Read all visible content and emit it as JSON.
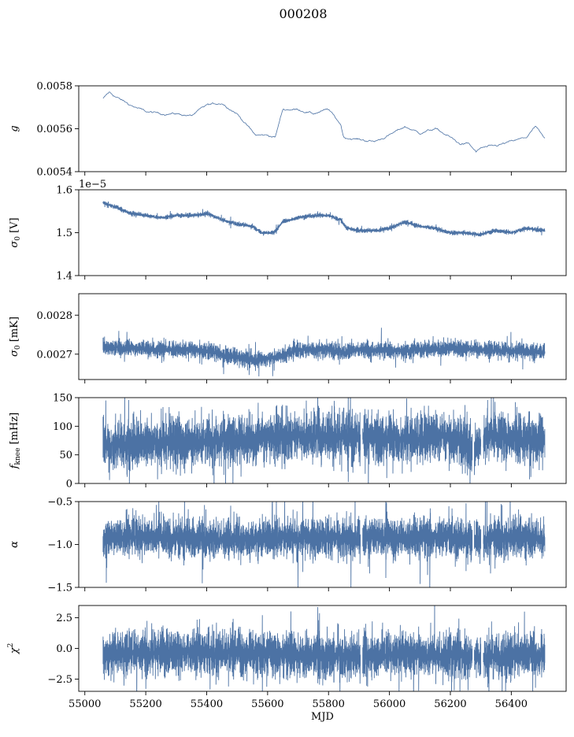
{
  "figure": {
    "title": "000208"
  },
  "colors": {
    "series": "#4c72a4",
    "axis": "#000000",
    "background": "#ffffff"
  },
  "chart_data": [
    {
      "type": "line",
      "panel": "g",
      "ylabel": "g",
      "ylabel_html": "<tspan font-style='italic'>g</tspan>",
      "ylim": [
        0.0054,
        0.0058
      ],
      "yticks": [
        0.0054,
        0.0056,
        0.0058
      ],
      "ytick_labels": [
        "0.0054",
        "0.0056",
        "0.0058"
      ],
      "xlim": [
        54980,
        56580
      ],
      "show_xtick_labels": false,
      "style": "thin",
      "x_range": [
        55060,
        56510
      ],
      "x": [
        55060,
        55080,
        55100,
        55150,
        55200,
        55250,
        55300,
        55350,
        55400,
        55450,
        55500,
        55530,
        55560,
        55600,
        55625,
        55650,
        55700,
        55750,
        55800,
        55840,
        55850,
        55900,
        55950,
        56000,
        56050,
        56100,
        56150,
        56200,
        56230,
        56260,
        56285,
        56300,
        56350,
        56400,
        56450,
        56480,
        56510
      ],
      "y": [
        0.00574,
        0.00577,
        0.00575,
        0.00571,
        0.00568,
        0.00567,
        0.00567,
        0.00566,
        0.00571,
        0.00572,
        0.00567,
        0.00562,
        0.00557,
        0.00557,
        0.00556,
        0.00569,
        0.00569,
        0.00567,
        0.00569,
        0.00562,
        0.00556,
        0.00555,
        0.00554,
        0.00557,
        0.00561,
        0.00558,
        0.0056,
        0.00556,
        0.00553,
        0.00553,
        0.00549,
        0.00551,
        0.00552,
        0.00554,
        0.00556,
        0.00561,
        0.00555
      ],
      "noise": 4e-06
    },
    {
      "type": "line",
      "panel": "sigma0_V",
      "ylabel": "σ0 [V]",
      "ylim": [
        1.4e-05,
        1.6e-05
      ],
      "yticks": [
        1.4e-05,
        1.5e-05,
        1.6e-05
      ],
      "ytick_labels": [
        "1.4",
        "1.5",
        "1.6"
      ],
      "offset_text": "1e−5",
      "xlim": [
        54980,
        56580
      ],
      "show_xtick_labels": false,
      "style": "dense",
      "x_range": [
        55060,
        56510
      ],
      "x": [
        55060,
        55100,
        55150,
        55200,
        55250,
        55300,
        55350,
        55400,
        55450,
        55500,
        55550,
        55580,
        55620,
        55650,
        55700,
        55750,
        55800,
        55840,
        55860,
        55900,
        55950,
        56000,
        56050,
        56100,
        56150,
        56200,
        56250,
        56290,
        56320,
        56350,
        56400,
        56450,
        56510
      ],
      "y": [
        1.57e-05,
        1.56e-05,
        1.545e-05,
        1.54e-05,
        1.535e-05,
        1.54e-05,
        1.54e-05,
        1.545e-05,
        1.53e-05,
        1.52e-05,
        1.515e-05,
        1.5e-05,
        1.5e-05,
        1.525e-05,
        1.535e-05,
        1.54e-05,
        1.54e-05,
        1.53e-05,
        1.51e-05,
        1.505e-05,
        1.505e-05,
        1.51e-05,
        1.525e-05,
        1.515e-05,
        1.51e-05,
        1.5e-05,
        1.5e-05,
        1.495e-05,
        1.5e-05,
        1.505e-05,
        1.5e-05,
        1.51e-05,
        1.505e-05
      ],
      "band": 4.5e-08
    },
    {
      "type": "line",
      "panel": "sigma0_mK",
      "ylabel": "σ0 [mK]",
      "ylim": [
        0.002635,
        0.002855
      ],
      "yticks": [
        0.0027,
        0.0028
      ],
      "ytick_labels": [
        "0.0027",
        "0.0028"
      ],
      "xlim": [
        54980,
        56580
      ],
      "show_xtick_labels": false,
      "style": "dense",
      "x_range": [
        55060,
        56510
      ],
      "x": [
        55060,
        55150,
        55250,
        55350,
        55420,
        55480,
        55560,
        55620,
        55700,
        55800,
        55850,
        55900,
        56000,
        56100,
        56200,
        56300,
        56400,
        56510
      ],
      "y": [
        0.00272,
        0.002715,
        0.002712,
        0.002712,
        0.002705,
        0.002695,
        0.002685,
        0.00269,
        0.002712,
        0.002712,
        0.002705,
        0.002712,
        0.002708,
        0.002712,
        0.002715,
        0.002712,
        0.002708,
        0.002705
      ],
      "band": 1.8e-05
    },
    {
      "type": "line",
      "panel": "fknee",
      "ylabel": "fknee [mHz]",
      "ylim": [
        0,
        150
      ],
      "yticks": [
        0,
        50,
        100,
        150
      ],
      "ytick_labels": [
        "0",
        "50",
        "100",
        "150"
      ],
      "xlim": [
        54980,
        56580
      ],
      "show_xtick_labels": false,
      "style": "dense",
      "x_range": [
        55060,
        56510
      ],
      "x": [
        55060,
        55200,
        55400,
        55600,
        55800,
        55900,
        56000,
        56200,
        56280,
        56320,
        56400,
        56510
      ],
      "y": [
        68,
        70,
        72,
        80,
        82,
        80,
        78,
        80,
        60,
        85,
        78,
        75
      ],
      "band": 38,
      "gaps": [
        [
          55905,
          55912
        ],
        [
          56272,
          56278
        ],
        [
          56300,
          56308
        ]
      ]
    },
    {
      "type": "line",
      "panel": "alpha",
      "ylabel": "α",
      "ylim": [
        -1.5,
        -0.5
      ],
      "yticks": [
        -1.5,
        -1.0,
        -0.5
      ],
      "ytick_labels": [
        "−1.5",
        "−1.0",
        "−0.5"
      ],
      "xlim": [
        54980,
        56580
      ],
      "show_xtick_labels": false,
      "style": "dense",
      "x_range": [
        55060,
        56510
      ],
      "x": [
        55060,
        55200,
        55400,
        55600,
        55800,
        55900,
        56000,
        56200,
        56300,
        56400,
        56510
      ],
      "y": [
        -0.92,
        -0.9,
        -0.95,
        -0.93,
        -0.92,
        -0.93,
        -0.92,
        -0.92,
        -0.95,
        -0.92,
        -0.93
      ],
      "band": 0.2,
      "gaps": [
        [
          55905,
          55912
        ],
        [
          56272,
          56278
        ],
        [
          56300,
          56308
        ]
      ]
    },
    {
      "type": "line",
      "panel": "chi2",
      "ylabel": "χ2",
      "ylim": [
        -3.5,
        3.5
      ],
      "yticks": [
        -2.5,
        0.0,
        2.5
      ],
      "ytick_labels": [
        "−2.5",
        "0.0",
        "2.5"
      ],
      "xlim": [
        54980,
        56580
      ],
      "show_xtick_labels": true,
      "xticks": [
        55000,
        55200,
        55400,
        55600,
        55800,
        56000,
        56200,
        56400
      ],
      "xtick_labels": [
        "55000",
        "55200",
        "55400",
        "55600",
        "55800",
        "56000",
        "56200",
        "56400"
      ],
      "xlabel": "MJD",
      "style": "dense",
      "x_range": [
        55060,
        56510
      ],
      "x": [
        55060,
        55200,
        55400,
        55600,
        55800,
        55900,
        56000,
        56200,
        56300,
        56400,
        56510
      ],
      "y": [
        -0.5,
        -0.4,
        -0.3,
        -0.5,
        -0.6,
        -0.6,
        -0.5,
        -0.6,
        -0.7,
        -0.6,
        -0.6
      ],
      "band": 1.6,
      "gaps": [
        [
          55905,
          55912
        ],
        [
          56272,
          56278
        ],
        [
          56300,
          56308
        ]
      ]
    }
  ]
}
